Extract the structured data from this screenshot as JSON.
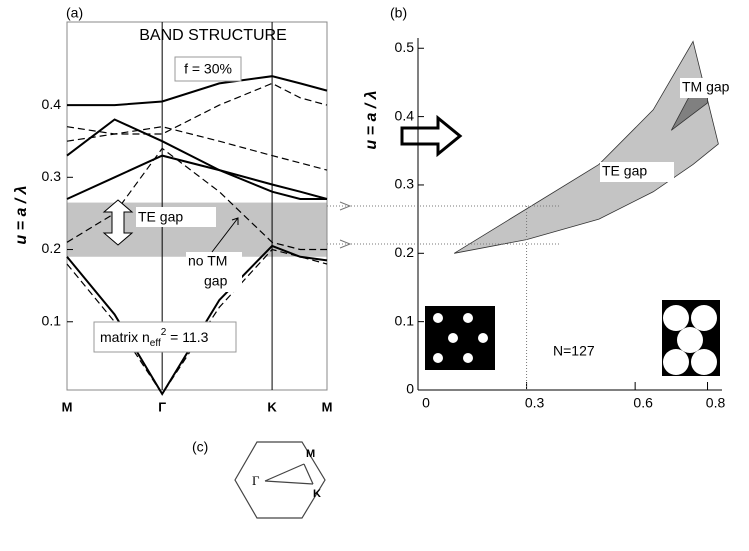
{
  "chart_data": [
    {
      "type": "line",
      "panel_label": "(a)",
      "title": "BAND STRUCTURE",
      "ylabel": "u = a / λ",
      "annotations": [
        "f = 30%",
        "TE gap",
        "no TM",
        "gap"
      ],
      "matrix_label": [
        "matrix n",
        "eff",
        "2",
        " = 11.3"
      ],
      "xlim": [
        0,
        2.732
      ],
      "ylim": [
        0,
        0.515
      ],
      "xticks": [
        {
          "value": 0,
          "label": "M"
        },
        {
          "value": 1,
          "label": "Γ"
        },
        {
          "value": 2.155,
          "label": "K"
        },
        {
          "value": 2.732,
          "label": "M"
        }
      ],
      "yticks": [
        0.1,
        0.2,
        0.3,
        0.4
      ],
      "xgrid": true,
      "te_gap": [
        0.19,
        0.265
      ],
      "gap_color": "#c4c4c4",
      "series": [
        {
          "color": "#000",
          "dashed": false,
          "x": [
            0,
            0.5,
            1,
            1.6,
            2.155,
            2.45,
            2.732
          ],
          "values": [
            0.19,
            0.11,
            0,
            0.13,
            0.205,
            0.19,
            0.185
          ]
        },
        {
          "color": "#000",
          "dashed": false,
          "x": [
            0,
            0.5,
            1,
            1.6,
            2.155,
            2.45,
            2.732
          ],
          "values": [
            0.27,
            0.3,
            0.33,
            0.31,
            0.28,
            0.27,
            0.27
          ]
        },
        {
          "color": "#000",
          "dashed": false,
          "x": [
            0,
            0.5,
            1,
            1.6,
            2.155,
            2.45,
            2.732
          ],
          "values": [
            0.33,
            0.38,
            0.35,
            0.31,
            0.29,
            0.28,
            0.27
          ]
        },
        {
          "color": "#000",
          "dashed": false,
          "x": [
            0,
            0.5,
            1,
            1.6,
            2.155,
            2.45,
            2.732
          ],
          "values": [
            0.4,
            0.4,
            0.405,
            0.43,
            0.44,
            0.43,
            0.42
          ]
        },
        {
          "color": "#000",
          "dashed": true,
          "x": [
            0,
            0.5,
            1,
            1.6,
            2.155,
            2.45,
            2.732
          ],
          "values": [
            0.18,
            0.1,
            0,
            0.12,
            0.2,
            0.19,
            0.18
          ]
        },
        {
          "color": "#000",
          "dashed": true,
          "x": [
            0,
            0.5,
            1,
            1.6,
            2.155,
            2.45,
            2.732
          ],
          "values": [
            0.21,
            0.25,
            0.34,
            0.28,
            0.21,
            0.2,
            0.2
          ]
        },
        {
          "color": "#000",
          "dashed": true,
          "x": [
            0,
            0.5,
            1,
            1.6,
            2.155,
            2.45,
            2.732
          ],
          "values": [
            0.35,
            0.36,
            0.37,
            0.35,
            0.33,
            0.32,
            0.31
          ]
        },
        {
          "color": "#000",
          "dashed": true,
          "x": [
            0,
            0.5,
            1,
            1.6,
            2.155,
            2.45,
            2.732
          ],
          "values": [
            0.37,
            0.36,
            0.36,
            0.4,
            0.43,
            0.41,
            0.4
          ]
        }
      ]
    },
    {
      "type": "area",
      "panel_label": "(b)",
      "ylabel": "u = a / λ",
      "annotations": [
        "N=127"
      ],
      "xlim": [
        0,
        0.84
      ],
      "ylim": [
        0,
        0.515
      ],
      "xticks": [
        0,
        0.3,
        0.6,
        0.8
      ],
      "yticks": [
        0,
        0.1,
        0.2,
        0.3,
        0.4,
        0.5
      ],
      "series": [
        {
          "name": "TE gap",
          "color": "#c4c4c4",
          "x": [
            0.1,
            0.3,
            0.5,
            0.65,
            0.76,
            0.83
          ],
          "lower": [
            0.2,
            0.22,
            0.25,
            0.29,
            0.33,
            0.36
          ],
          "upper": [
            0.2,
            0.265,
            0.33,
            0.41,
            0.51,
            0.36
          ]
        },
        {
          "name": "TM gap",
          "color": "#808080",
          "x": [
            0.7,
            0.75,
            0.8
          ],
          "lower": [
            0.38,
            0.4,
            0.42
          ],
          "upper": [
            0.38,
            0.43,
            0.45
          ]
        }
      ]
    }
  ],
  "inset": {
    "label": "(c)",
    "points": [
      "M",
      "Γ",
      "K"
    ]
  }
}
